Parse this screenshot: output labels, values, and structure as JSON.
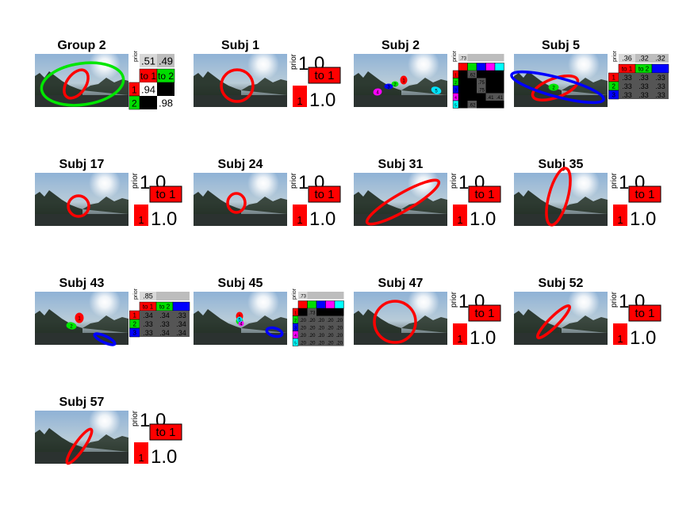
{
  "chart_data": [
    {
      "type": "other",
      "title": "Group 2",
      "prior": [
        ".51",
        ".49"
      ],
      "matrix_headers": [
        "to 1",
        "to 2"
      ],
      "matrix_header_colors": [
        "#ff0000",
        "#00dd00"
      ],
      "row_colors": [
        "#ff0000",
        "#00dd00"
      ],
      "row_labels": [
        "1",
        "2"
      ],
      "matrix": [
        [
          ".94",
          ""
        ],
        [
          "",
          ".98"
        ]
      ],
      "ellipses": [
        {
          "color": "#ff0000",
          "label": "1"
        },
        {
          "color": "#00e600",
          "label": "2"
        }
      ]
    },
    {
      "type": "other",
      "title": "Subj 1",
      "prior": [
        "1.0"
      ],
      "matrix_headers": [
        "to 1"
      ],
      "matrix_header_colors": [
        "#ff0000"
      ],
      "row_colors": [
        "#ff0000"
      ],
      "row_labels": [
        "1"
      ],
      "matrix": [
        [
          "1.0"
        ]
      ],
      "ellipses": [
        {
          "color": "#ff0000",
          "label": "1"
        }
      ]
    },
    {
      "type": "other",
      "title": "Subj 2",
      "prior": [
        ".73",
        "",
        "",
        "",
        ""
      ],
      "matrix_headers": [
        "",
        "",
        "",
        "",
        ""
      ],
      "matrix_header_colors": [
        "#ff0000",
        "#00dd00",
        "#0000ff",
        "#ff00ff",
        "#00ffff"
      ],
      "row_colors": [
        "#ff0000",
        "#00dd00",
        "#0000ff",
        "#ff00ff",
        "#00ffff"
      ],
      "row_labels": [
        "1",
        "2",
        "3",
        "4",
        "5"
      ],
      "matrix": [
        [
          "",
          ".62",
          "",
          "",
          ""
        ],
        [
          "",
          "",
          ".75",
          "",
          ""
        ],
        [
          "",
          "",
          ".75",
          "",
          ""
        ],
        [
          "",
          "",
          "",
          ".41",
          ".41"
        ],
        [
          "",
          ".62",
          "",
          "",
          ""
        ]
      ],
      "ellipses": [
        {
          "color": "#ff0000",
          "label": "1"
        },
        {
          "color": "#00e600",
          "label": "2"
        },
        {
          "color": "#0000ff",
          "label": "3"
        },
        {
          "color": "#ff00ff",
          "label": "4"
        },
        {
          "color": "#00e5ff",
          "label": "5"
        }
      ]
    },
    {
      "type": "other",
      "title": "Subj 5",
      "prior": [
        ".36",
        ".32",
        ".32"
      ],
      "matrix_headers": [
        "to 1",
        "to 2",
        ""
      ],
      "matrix_header_colors": [
        "#ff0000",
        "#00dd00",
        "#0000ff"
      ],
      "row_colors": [
        "#ff0000",
        "#00dd00",
        "#0000ff"
      ],
      "row_labels": [
        "1",
        "2",
        "3"
      ],
      "matrix": [
        [
          ".33",
          ".33",
          ".33"
        ],
        [
          ".33",
          ".33",
          ".33"
        ],
        [
          ".33",
          ".33",
          ".33"
        ]
      ],
      "ellipses": [
        {
          "color": "#ff0000",
          "label": "1"
        },
        {
          "color": "#00e600",
          "label": "2"
        },
        {
          "color": "#0000ff",
          "label": "3"
        }
      ]
    },
    {
      "type": "other",
      "title": "Subj 17",
      "prior": [
        "1.0"
      ],
      "matrix_headers": [
        "to 1"
      ],
      "matrix_header_colors": [
        "#ff0000"
      ],
      "row_colors": [
        "#ff0000"
      ],
      "row_labels": [
        "1"
      ],
      "matrix": [
        [
          "1.0"
        ]
      ],
      "ellipses": [
        {
          "color": "#ff0000",
          "label": "1"
        }
      ]
    },
    {
      "type": "other",
      "title": "Subj 24",
      "prior": [
        "1.0"
      ],
      "matrix_headers": [
        "to 1"
      ],
      "matrix_header_colors": [
        "#ff0000"
      ],
      "row_colors": [
        "#ff0000"
      ],
      "row_labels": [
        "1"
      ],
      "matrix": [
        [
          "1.0"
        ]
      ],
      "ellipses": [
        {
          "color": "#ff0000",
          "label": "1"
        }
      ]
    },
    {
      "type": "other",
      "title": "Subj 31",
      "prior": [
        "1.0"
      ],
      "matrix_headers": [
        "to 1"
      ],
      "matrix_header_colors": [
        "#ff0000"
      ],
      "row_colors": [
        "#ff0000"
      ],
      "row_labels": [
        "1"
      ],
      "matrix": [
        [
          "1.0"
        ]
      ],
      "ellipses": [
        {
          "color": "#ff0000",
          "label": "1"
        }
      ]
    },
    {
      "type": "other",
      "title": "Subj 35",
      "prior": [
        "1.0"
      ],
      "matrix_headers": [
        "to 1"
      ],
      "matrix_header_colors": [
        "#ff0000"
      ],
      "row_colors": [
        "#ff0000"
      ],
      "row_labels": [
        "1"
      ],
      "matrix": [
        [
          "1.0"
        ]
      ],
      "ellipses": [
        {
          "color": "#ff0000",
          "label": "1"
        }
      ]
    },
    {
      "type": "other",
      "title": "Subj 43",
      "prior": [
        ".85",
        "",
        ""
      ],
      "matrix_headers": [
        "to 1",
        "to 2",
        ""
      ],
      "matrix_header_colors": [
        "#ff0000",
        "#00dd00",
        "#0000ff"
      ],
      "row_colors": [
        "#ff0000",
        "#00dd00",
        "#0000ff"
      ],
      "row_labels": [
        "1",
        "2",
        "3"
      ],
      "matrix": [
        [
          ".34",
          ".34",
          ".33"
        ],
        [
          ".33",
          ".33",
          ".34"
        ],
        [
          ".33",
          ".34",
          ".34"
        ]
      ],
      "ellipses": [
        {
          "color": "#ff0000",
          "label": "1"
        },
        {
          "color": "#00e600",
          "label": "2"
        },
        {
          "color": "#0000ff",
          "label": "3"
        }
      ]
    },
    {
      "type": "other",
      "title": "Subj 45",
      "prior": [
        ".73",
        "",
        "",
        "",
        ""
      ],
      "matrix_headers": [
        "",
        "",
        "",
        "",
        ""
      ],
      "matrix_header_colors": [
        "#ff0000",
        "#00dd00",
        "#0000ff",
        "#ff00ff",
        "#00ffff"
      ],
      "row_colors": [
        "#ff0000",
        "#00dd00",
        "#0000ff",
        "#ff00ff",
        "#00ffff"
      ],
      "row_labels": [
        "1",
        "2",
        "3",
        "4",
        "5"
      ],
      "matrix": [
        [
          "",
          ".73",
          "",
          "",
          ""
        ],
        [
          ".20",
          ".20",
          ".20",
          ".20",
          ".20"
        ],
        [
          ".20",
          ".20",
          ".20",
          ".20",
          ".20"
        ],
        [
          ".20",
          ".20",
          ".20",
          ".20",
          ".20"
        ],
        [
          ".20",
          ".20",
          ".20",
          ".20",
          ".20"
        ]
      ],
      "ellipses": [
        {
          "color": "#ff0000",
          "label": "1"
        },
        {
          "color": "#00e600",
          "label": "2"
        },
        {
          "color": "#0000ff",
          "label": "3"
        },
        {
          "color": "#ff00ff",
          "label": "4"
        },
        {
          "color": "#00e5ff",
          "label": "5"
        }
      ]
    },
    {
      "type": "other",
      "title": "Subj 47",
      "prior": [
        "1.0"
      ],
      "matrix_headers": [
        "to 1"
      ],
      "matrix_header_colors": [
        "#ff0000"
      ],
      "row_colors": [
        "#ff0000"
      ],
      "row_labels": [
        "1"
      ],
      "matrix": [
        [
          "1.0"
        ]
      ],
      "ellipses": [
        {
          "color": "#ff0000",
          "label": "1"
        }
      ]
    },
    {
      "type": "other",
      "title": "Subj 52",
      "prior": [
        "1.0"
      ],
      "matrix_headers": [
        "to 1"
      ],
      "matrix_header_colors": [
        "#ff0000"
      ],
      "row_colors": [
        "#ff0000"
      ],
      "row_labels": [
        "1"
      ],
      "matrix": [
        [
          "1.0"
        ]
      ],
      "ellipses": [
        {
          "color": "#ff0000",
          "label": "1"
        }
      ]
    },
    {
      "type": "other",
      "title": "Subj 57",
      "prior": [
        "1.0"
      ],
      "matrix_headers": [
        "to 1"
      ],
      "matrix_header_colors": [
        "#ff0000"
      ],
      "row_colors": [
        "#ff0000"
      ],
      "row_labels": [
        "1"
      ],
      "matrix": [
        [
          "1.0"
        ]
      ],
      "ellipses": [
        {
          "color": "#ff0000",
          "label": "1"
        }
      ]
    }
  ],
  "labels": {
    "prior": "prior"
  }
}
